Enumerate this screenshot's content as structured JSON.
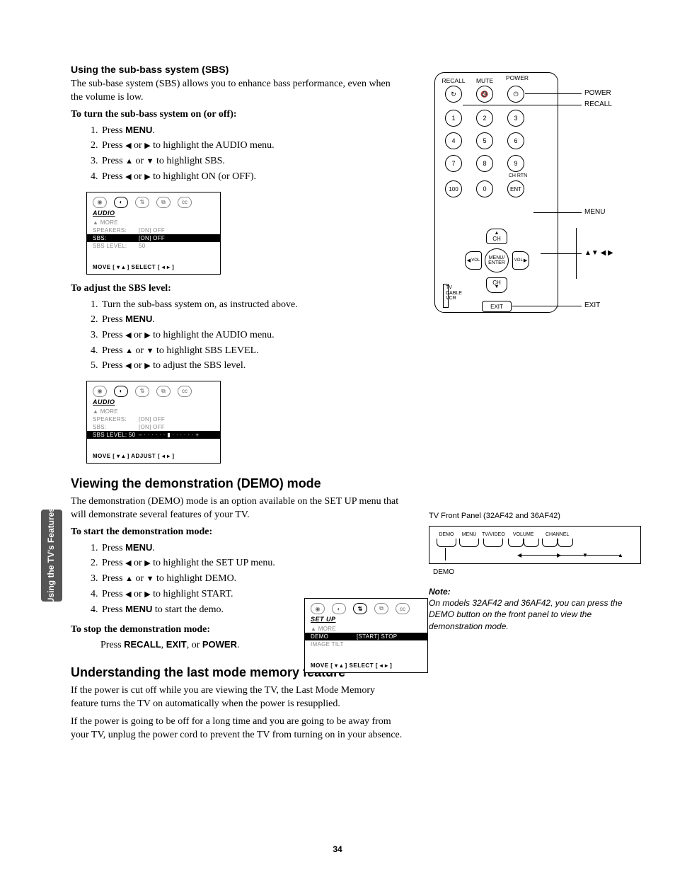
{
  "page_number": "34",
  "sidebar_tab": "Using the TV's Features",
  "sections": {
    "sbs": {
      "heading": "Using the sub-bass system (SBS)",
      "intro": "The sub-base system (SBS) allows you to enhance bass performance, even when the volume is low.",
      "turn_on_lead": "To turn the sub-bass system on (or off):",
      "turn_on_steps": {
        "s1_a": "Press ",
        "s1_b": "MENU",
        "s1_c": ".",
        "s2_a": "Press ",
        "s2_b": " or ",
        "s2_c": " to highlight the AUDIO menu.",
        "s3_a": "Press ",
        "s3_b": " or ",
        "s3_c": " to highlight SBS.",
        "s4_a": "Press ",
        "s4_b": " or ",
        "s4_c": " to highlight ON (or OFF)."
      },
      "adjust_lead": "To adjust the SBS level:",
      "adjust_steps": {
        "s1": "Turn the sub-bass system on, as instructed above.",
        "s2_a": "Press ",
        "s2_b": "MENU",
        "s2_c": ".",
        "s3_a": "Press ",
        "s3_b": " or ",
        "s3_c": " to highlight the AUDIO menu.",
        "s4_a": "Press ",
        "s4_b": " or ",
        "s4_c": " to highlight SBS LEVEL.",
        "s5_a": "Press ",
        "s5_b": " or ",
        "s5_c": " to adjust the SBS level."
      }
    },
    "demo": {
      "heading": "Viewing the demonstration (DEMO) mode",
      "intro": "The demonstration (DEMO) mode is an option available on the SET UP menu that will demonstrate several features of your TV.",
      "start_lead": "To start the demonstration mode:",
      "start_steps": {
        "s1_a": "Press ",
        "s1_b": "MENU",
        "s1_c": ".",
        "s2_a": "Press ",
        "s2_b": " or ",
        "s2_c": " to highlight the SET UP menu.",
        "s3_a": "Press ",
        "s3_b": " or ",
        "s3_c": " to highlight DEMO.",
        "s4_a": "Press ",
        "s4_b": " or ",
        "s4_c": " to highlight START.",
        "s5_a": "Press ",
        "s5_b": "MENU",
        "s5_c": " to start the demo."
      },
      "stop_lead": "To stop the demonstration mode:",
      "stop_a": "Press  ",
      "stop_b": "RECALL",
      "stop_c": ", ",
      "stop_d": "EXIT",
      "stop_e": ", or ",
      "stop_f": "POWER",
      "stop_g": "."
    },
    "lastmode": {
      "heading": "Understanding the last mode memory feature",
      "p1": "If the power is cut off while you are viewing the TV, the Last Mode Memory feature turns the TV on automatically when the power is resupplied.",
      "p2": "If the power is going to be off for a long time and you are going to be away from your TV, unplug the power cord to prevent the TV from turning on in your absence."
    }
  },
  "osd_audio1": {
    "title": "AUDIO",
    "rows": [
      {
        "k": "▲ MORE",
        "v": ""
      },
      {
        "k": "SPEAKERS:",
        "v": "[ON] OFF"
      },
      {
        "k": "SBS:",
        "v": "[ON] OFF",
        "sel": true
      },
      {
        "k": "SBS LEVEL:",
        "v": "50"
      }
    ],
    "footer": "MOVE [ ▾ ▴ ]   SELECT [ ◂ ▸ ]"
  },
  "osd_audio2": {
    "title": "AUDIO",
    "rows": [
      {
        "k": "▲ MORE",
        "v": ""
      },
      {
        "k": "SPEAKERS:",
        "v": "[ON] OFF"
      },
      {
        "k": "SBS:",
        "v": "[ON] OFF"
      },
      {
        "k": "SBS LEVEL:  50",
        "v": "– · · · · · · ▮ · · · · · · +",
        "sel": true
      }
    ],
    "footer": "MOVE [ ▾ ▴ ]   ADJUST [ ◂ ▸ ]"
  },
  "osd_setup": {
    "title": "SET UP",
    "rows": [
      {
        "k": "▲ MORE",
        "v": ""
      },
      {
        "k": "DEMO",
        "v": "[START] STOP",
        "sel": true
      },
      {
        "k": "IMAGE TILT",
        "v": ""
      }
    ],
    "footer": "MOVE [ ▾ ▴ ]   SELECT [ ◂ ▸ ]"
  },
  "remote": {
    "top_labels": {
      "recall": "RECALL",
      "mute": "MUTE",
      "power": "POWER"
    },
    "keypad": [
      "1",
      "2",
      "3",
      "4",
      "5",
      "6",
      "7",
      "8",
      "9",
      "100",
      "0",
      "ENT"
    ],
    "chrtn": "CH RTN",
    "dpad": {
      "center": "MENU/\nENTER",
      "up": "CH",
      "down": "CH",
      "left": "VOL",
      "right": "VOL"
    },
    "exit": "EXIT",
    "switch": [
      "TV",
      "CABLE",
      "VCR"
    ],
    "callouts": {
      "power": "POWER",
      "recall": "RECALL",
      "menu": "MENU",
      "arrows": "▲▼ ◀ ▶",
      "exit": "EXIT"
    }
  },
  "front_panel": {
    "title": "TV Front Panel (32AF42 and 36AF42)",
    "buttons": [
      "DEMO",
      "MENU",
      "TV/VIDEO",
      "VOLUME",
      "CHANNEL"
    ],
    "demo_label": "DEMO",
    "note_title": "Note:",
    "note_body": "On models 32AF42 and 36AF42, you can press the DEMO button on the front panel to view the demonstration mode."
  },
  "glyphs": {
    "left": "◀",
    "right": "▶",
    "up": "▲",
    "down": "▼"
  },
  "colors": {
    "text": "#000000",
    "bg": "#ffffff",
    "sidebar": "#555555",
    "osd_dim": "#888888"
  }
}
